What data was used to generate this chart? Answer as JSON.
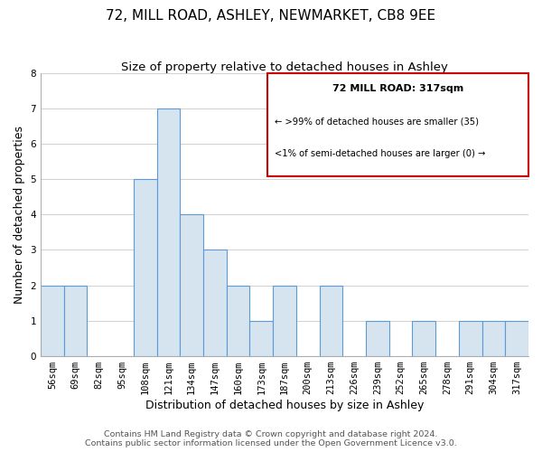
{
  "title": "72, MILL ROAD, ASHLEY, NEWMARKET, CB8 9EE",
  "subtitle": "Size of property relative to detached houses in Ashley",
  "xlabel": "Distribution of detached houses by size in Ashley",
  "ylabel": "Number of detached properties",
  "categories": [
    "56sqm",
    "69sqm",
    "82sqm",
    "95sqm",
    "108sqm",
    "121sqm",
    "134sqm",
    "147sqm",
    "160sqm",
    "173sqm",
    "187sqm",
    "200sqm",
    "213sqm",
    "226sqm",
    "239sqm",
    "252sqm",
    "265sqm",
    "278sqm",
    "291sqm",
    "304sqm",
    "317sqm"
  ],
  "values": [
    2,
    2,
    0,
    0,
    5,
    7,
    4,
    3,
    2,
    1,
    2,
    0,
    2,
    0,
    1,
    0,
    1,
    0,
    1,
    1,
    1
  ],
  "bar_fill_color": "#d6e4f0",
  "bar_edge_color": "#5b9bd5",
  "highlight_bar_index": 20,
  "highlight_bar_edge_color": "#cc0000",
  "ylim": [
    0,
    8
  ],
  "yticks": [
    0,
    1,
    2,
    3,
    4,
    5,
    6,
    7,
    8
  ],
  "legend_title": "72 MILL ROAD: 317sqm",
  "legend_line1": "← >99% of detached houses are smaller (35)",
  "legend_line2": "<1% of semi-detached houses are larger (0) →",
  "legend_box_edge_color": "#cc0000",
  "footer_line1": "Contains HM Land Registry data © Crown copyright and database right 2024.",
  "footer_line2": "Contains public sector information licensed under the Open Government Licence v3.0.",
  "background_color": "#ffffff",
  "grid_color": "#d0d0d0",
  "title_fontsize": 11,
  "subtitle_fontsize": 9.5,
  "axis_label_fontsize": 9,
  "tick_fontsize": 7.5,
  "footer_fontsize": 6.8
}
